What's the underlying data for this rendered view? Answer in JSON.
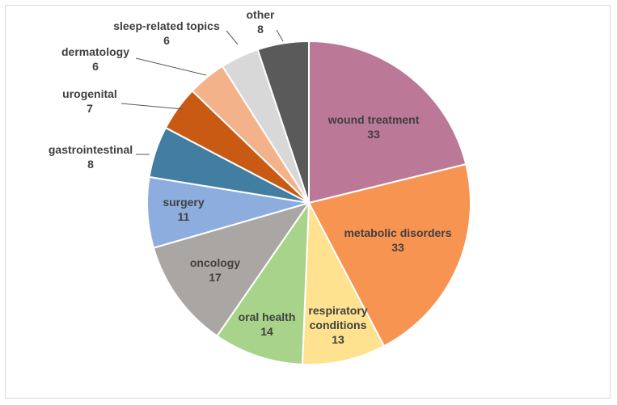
{
  "chart_data": {
    "type": "pie",
    "title": "",
    "legend": "none",
    "slices": [
      {
        "label": "wound treatment",
        "value": 33,
        "color": "#bb7897"
      },
      {
        "label": "metabolic disorders",
        "value": 33,
        "color": "#f79452"
      },
      {
        "label": "respiratory conditions",
        "value": 13,
        "color": "#fee28f"
      },
      {
        "label": "oral health",
        "value": 14,
        "color": "#a7d38a"
      },
      {
        "label": "oncology",
        "value": 17,
        "color": "#aaa6a3"
      },
      {
        "label": "surgery",
        "value": 11,
        "color": "#8daddf"
      },
      {
        "label": "gastrointestinal",
        "value": 8,
        "color": "#427ea1"
      },
      {
        "label": "urogenital",
        "value": 7,
        "color": "#c95a14"
      },
      {
        "label": "dermatology",
        "value": 6,
        "color": "#f3b289"
      },
      {
        "label": "sleep-related topics",
        "value": 6,
        "color": "#d8d8d8"
      },
      {
        "label": "other",
        "value": 8,
        "color": "#5a5a5a"
      }
    ]
  }
}
